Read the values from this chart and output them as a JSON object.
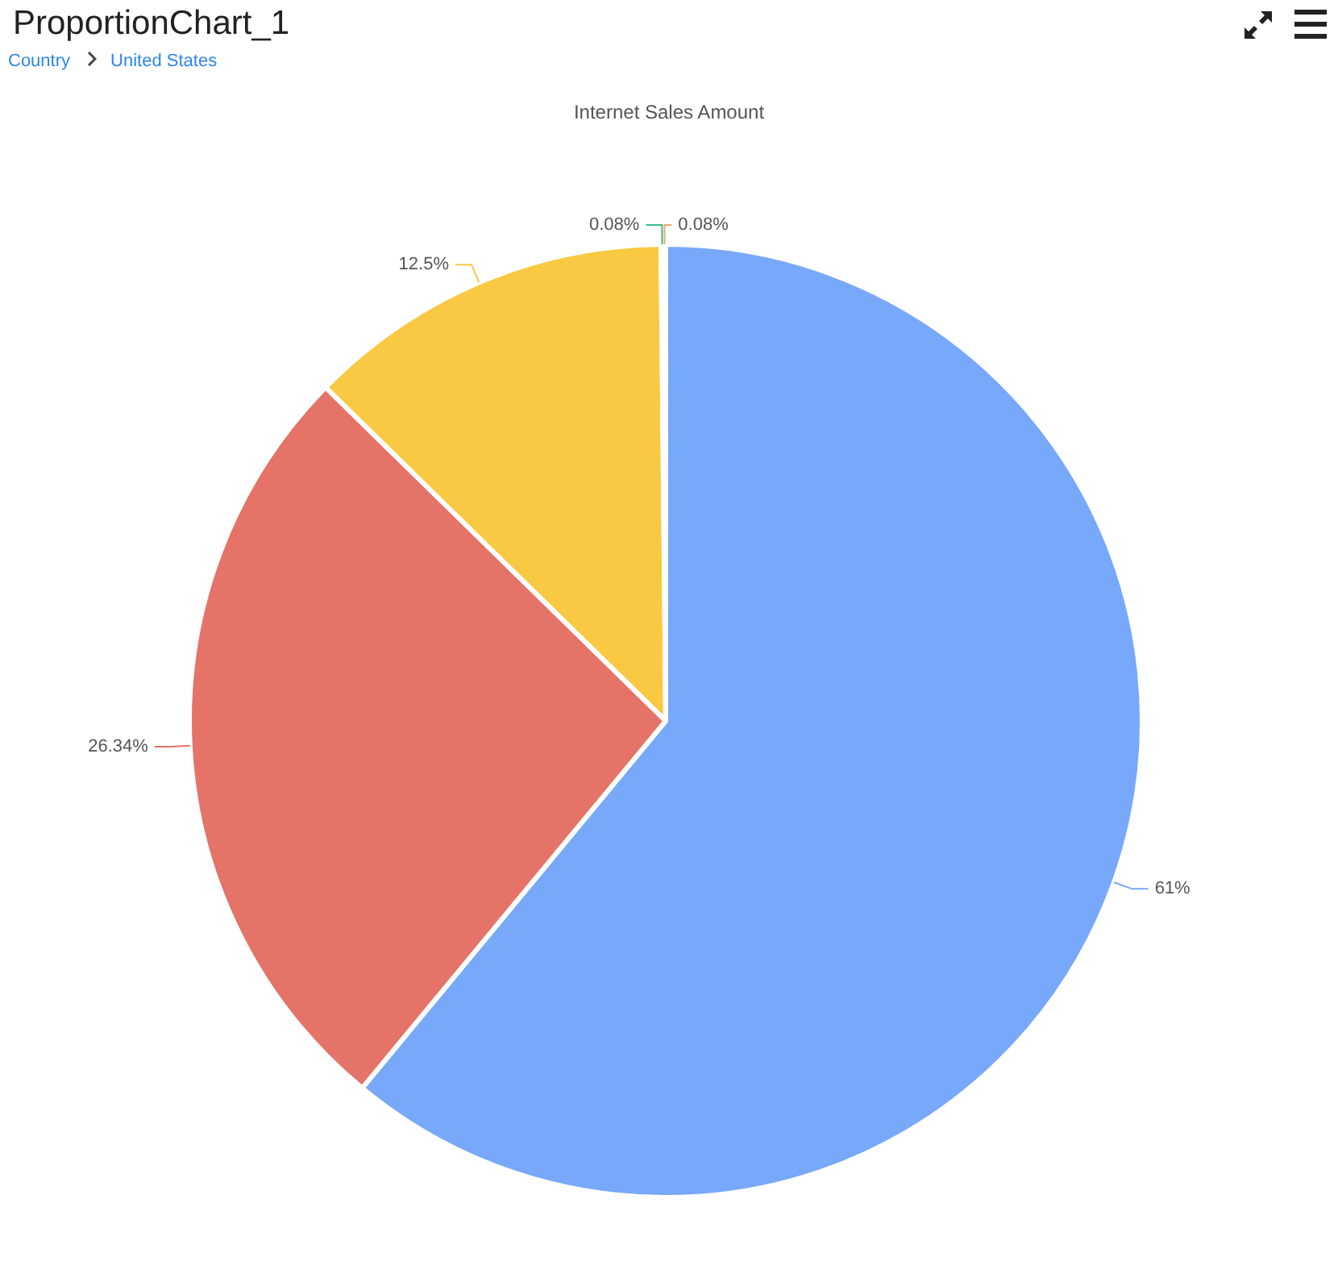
{
  "chart_data": {
    "type": "pie",
    "title": "ProportionChart_1",
    "subtitle": "Internet Sales Amount",
    "annotations": [
      "Country",
      "United States"
    ],
    "categories": [
      null,
      null,
      null,
      null,
      null
    ],
    "values": [
      61,
      26.34,
      12.5,
      0.08,
      0.08
    ],
    "colors": [
      "#78a8fa",
      "#e57368",
      "#fac943",
      "#3cba8a",
      "#f5a66d"
    ],
    "value_labels": [
      "61%",
      "26.34%",
      "12.5%",
      "0.08%",
      "0.08%"
    ],
    "legend": false
  }
}
